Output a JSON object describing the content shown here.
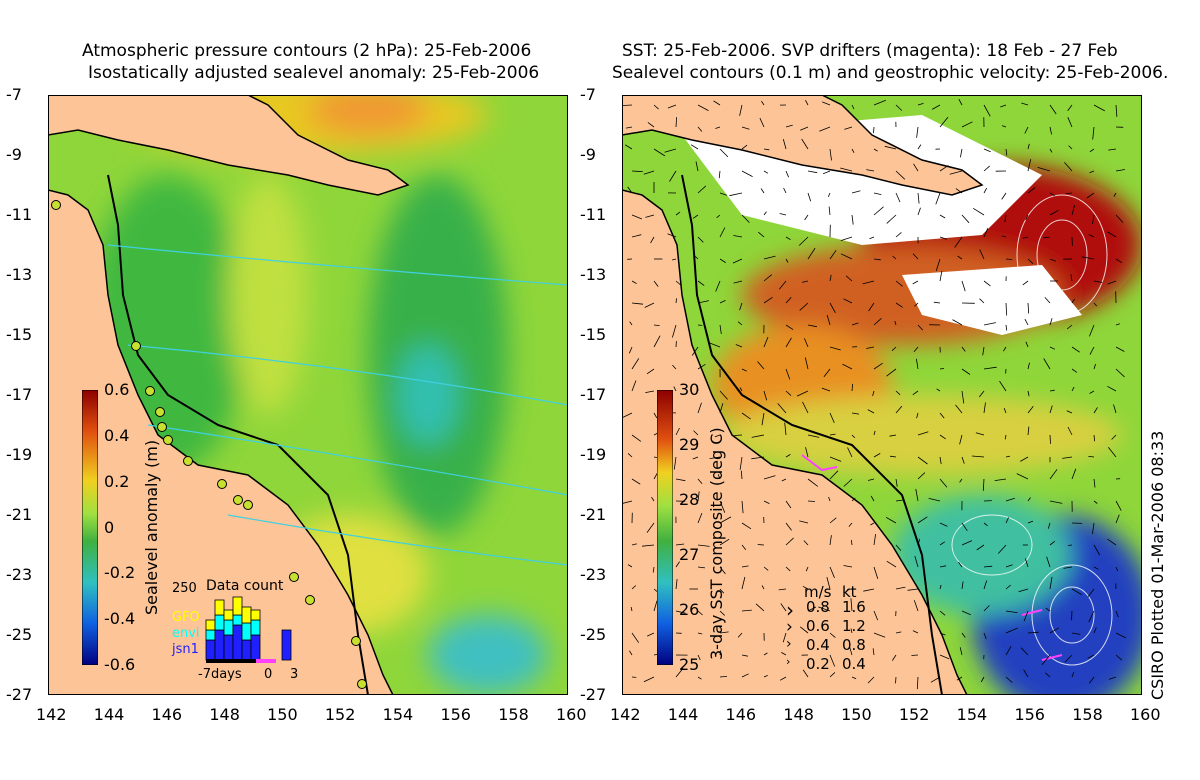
{
  "left_panel": {
    "title_line1": "Atmospheric pressure contours (2 hPa): 25-Feb-2006",
    "title_line2": "Isostatically adjusted sealevel anomaly: 25-Feb-2006",
    "colorbar": {
      "label": "Sealevel anomaly (m)",
      "ticks": [
        "0.6",
        "0.4",
        "0.2",
        "0",
        "-0.2",
        "-0.4",
        "-0.6"
      ],
      "range": [
        -0.6,
        0.6
      ]
    },
    "data_count": {
      "title": "Data count",
      "ymax_label": "250",
      "sat_labels": [
        "GFO",
        "envi",
        "jsn1"
      ],
      "sat_colors": [
        "#ffff00",
        "#00ffff",
        "#2020ff"
      ],
      "x_labels": [
        "-7days",
        "0",
        "3"
      ]
    }
  },
  "right_panel": {
    "title_line1": "SST: 25-Feb-2006. SVP drifters (magenta): 18 Feb - 27 Feb",
    "title_line2": "Sealevel contours (0.1 m) and geostrophic velocity: 25-Feb-2006.",
    "colorbar": {
      "label": "3-day SST composite (deg C)",
      "ticks": [
        "30",
        "29",
        "28",
        "27",
        "26",
        "25"
      ],
      "range": [
        25,
        30
      ]
    },
    "velocity_legend": {
      "header_ms": "m/s",
      "header_kt": "kt",
      "rows": [
        {
          "ms": "0.8",
          "kt": "1.6"
        },
        {
          "ms": "0.6",
          "kt": "1.2"
        },
        {
          "ms": "0.4",
          "kt": "0.8"
        },
        {
          "ms": "0.2",
          "kt": "0.4"
        }
      ]
    },
    "credit": "CSIRO Plotted 01-Mar-2006 08:33"
  },
  "axes": {
    "x_ticks": [
      "142",
      "144",
      "146",
      "148",
      "150",
      "152",
      "154",
      "156",
      "158",
      "160"
    ],
    "y_ticks": [
      "-7",
      "-9",
      "-11",
      "-13",
      "-15",
      "-17",
      "-19",
      "-21",
      "-23",
      "-25",
      "-27"
    ],
    "lon_range": [
      142,
      160
    ],
    "lat_range": [
      -27,
      -7
    ]
  },
  "colors": {
    "land": "#fdc597",
    "coast": "#000000",
    "pressure_contour": "#40d0e0",
    "tide_gauge": "#c8e030"
  }
}
